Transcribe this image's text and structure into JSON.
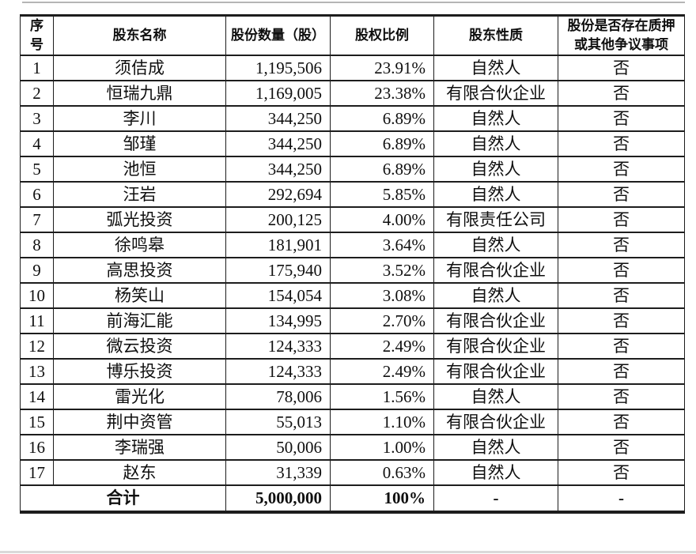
{
  "document": {
    "language": "zh-CN",
    "description": "shareholder-structure-table"
  },
  "colors": {
    "border": "#1d1d1d",
    "text": "#0f0f0f",
    "top_rule": "#b5b5b5",
    "bottom_rule": "#d9d9d9",
    "background": "#ffffff"
  },
  "table": {
    "columns": [
      {
        "key": "index",
        "label": "序号",
        "wrap": "per-char"
      },
      {
        "key": "name",
        "label": "股东名称"
      },
      {
        "key": "shares",
        "label": "股份数量（股）"
      },
      {
        "key": "ratio",
        "label": "股权比例"
      },
      {
        "key": "nature",
        "label": "股东性质"
      },
      {
        "key": "pledge",
        "label": "股份是否存在质押或其他争议事项"
      }
    ],
    "rows": [
      {
        "index": "1",
        "name": "须佶成",
        "shares": "1,195,506",
        "ratio": "23.91%",
        "nature": "自然人",
        "pledge": "否"
      },
      {
        "index": "2",
        "name": "恒瑞九鼎",
        "shares": "1,169,005",
        "ratio": "23.38%",
        "nature": "有限合伙企业",
        "pledge": "否"
      },
      {
        "index": "3",
        "name": "李川",
        "shares": "344,250",
        "ratio": "6.89%",
        "nature": "自然人",
        "pledge": "否"
      },
      {
        "index": "4",
        "name": "邹瑾",
        "shares": "344,250",
        "ratio": "6.89%",
        "nature": "自然人",
        "pledge": "否"
      },
      {
        "index": "5",
        "name": "池恒",
        "shares": "344,250",
        "ratio": "6.89%",
        "nature": "自然人",
        "pledge": "否"
      },
      {
        "index": "6",
        "name": "汪岩",
        "shares": "292,694",
        "ratio": "5.85%",
        "nature": "自然人",
        "pledge": "否"
      },
      {
        "index": "7",
        "name": "弧光投资",
        "shares": "200,125",
        "ratio": "4.00%",
        "nature": "有限责任公司",
        "pledge": "否"
      },
      {
        "index": "8",
        "name": "徐鸣皋",
        "shares": "181,901",
        "ratio": "3.64%",
        "nature": "自然人",
        "pledge": "否"
      },
      {
        "index": "9",
        "name": "高思投资",
        "shares": "175,940",
        "ratio": "3.52%",
        "nature": "有限合伙企业",
        "pledge": "否"
      },
      {
        "index": "10",
        "name": "杨笑山",
        "shares": "154,054",
        "ratio": "3.08%",
        "nature": "自然人",
        "pledge": "否"
      },
      {
        "index": "11",
        "name": "前海汇能",
        "shares": "134,995",
        "ratio": "2.70%",
        "nature": "有限合伙企业",
        "pledge": "否"
      },
      {
        "index": "12",
        "name": "微云投资",
        "shares": "124,333",
        "ratio": "2.49%",
        "nature": "有限合伙企业",
        "pledge": "否"
      },
      {
        "index": "13",
        "name": "博乐投资",
        "shares": "124,333",
        "ratio": "2.49%",
        "nature": "有限合伙企业",
        "pledge": "否"
      },
      {
        "index": "14",
        "name": "雷光化",
        "shares": "78,006",
        "ratio": "1.56%",
        "nature": "自然人",
        "pledge": "否"
      },
      {
        "index": "15",
        "name": "荆中资管",
        "shares": "55,013",
        "ratio": "1.10%",
        "nature": "有限合伙企业",
        "pledge": "否"
      },
      {
        "index": "16",
        "name": "李瑞强",
        "shares": "50,006",
        "ratio": "1.00%",
        "nature": "自然人",
        "pledge": "否"
      },
      {
        "index": "17",
        "name": "赵东",
        "shares": "31,339",
        "ratio": "0.63%",
        "nature": "自然人",
        "pledge": "否"
      }
    ],
    "total_row": {
      "label": "合计",
      "shares": "5,000,000",
      "ratio": "100%",
      "nature": "-",
      "pledge": "-"
    }
  }
}
